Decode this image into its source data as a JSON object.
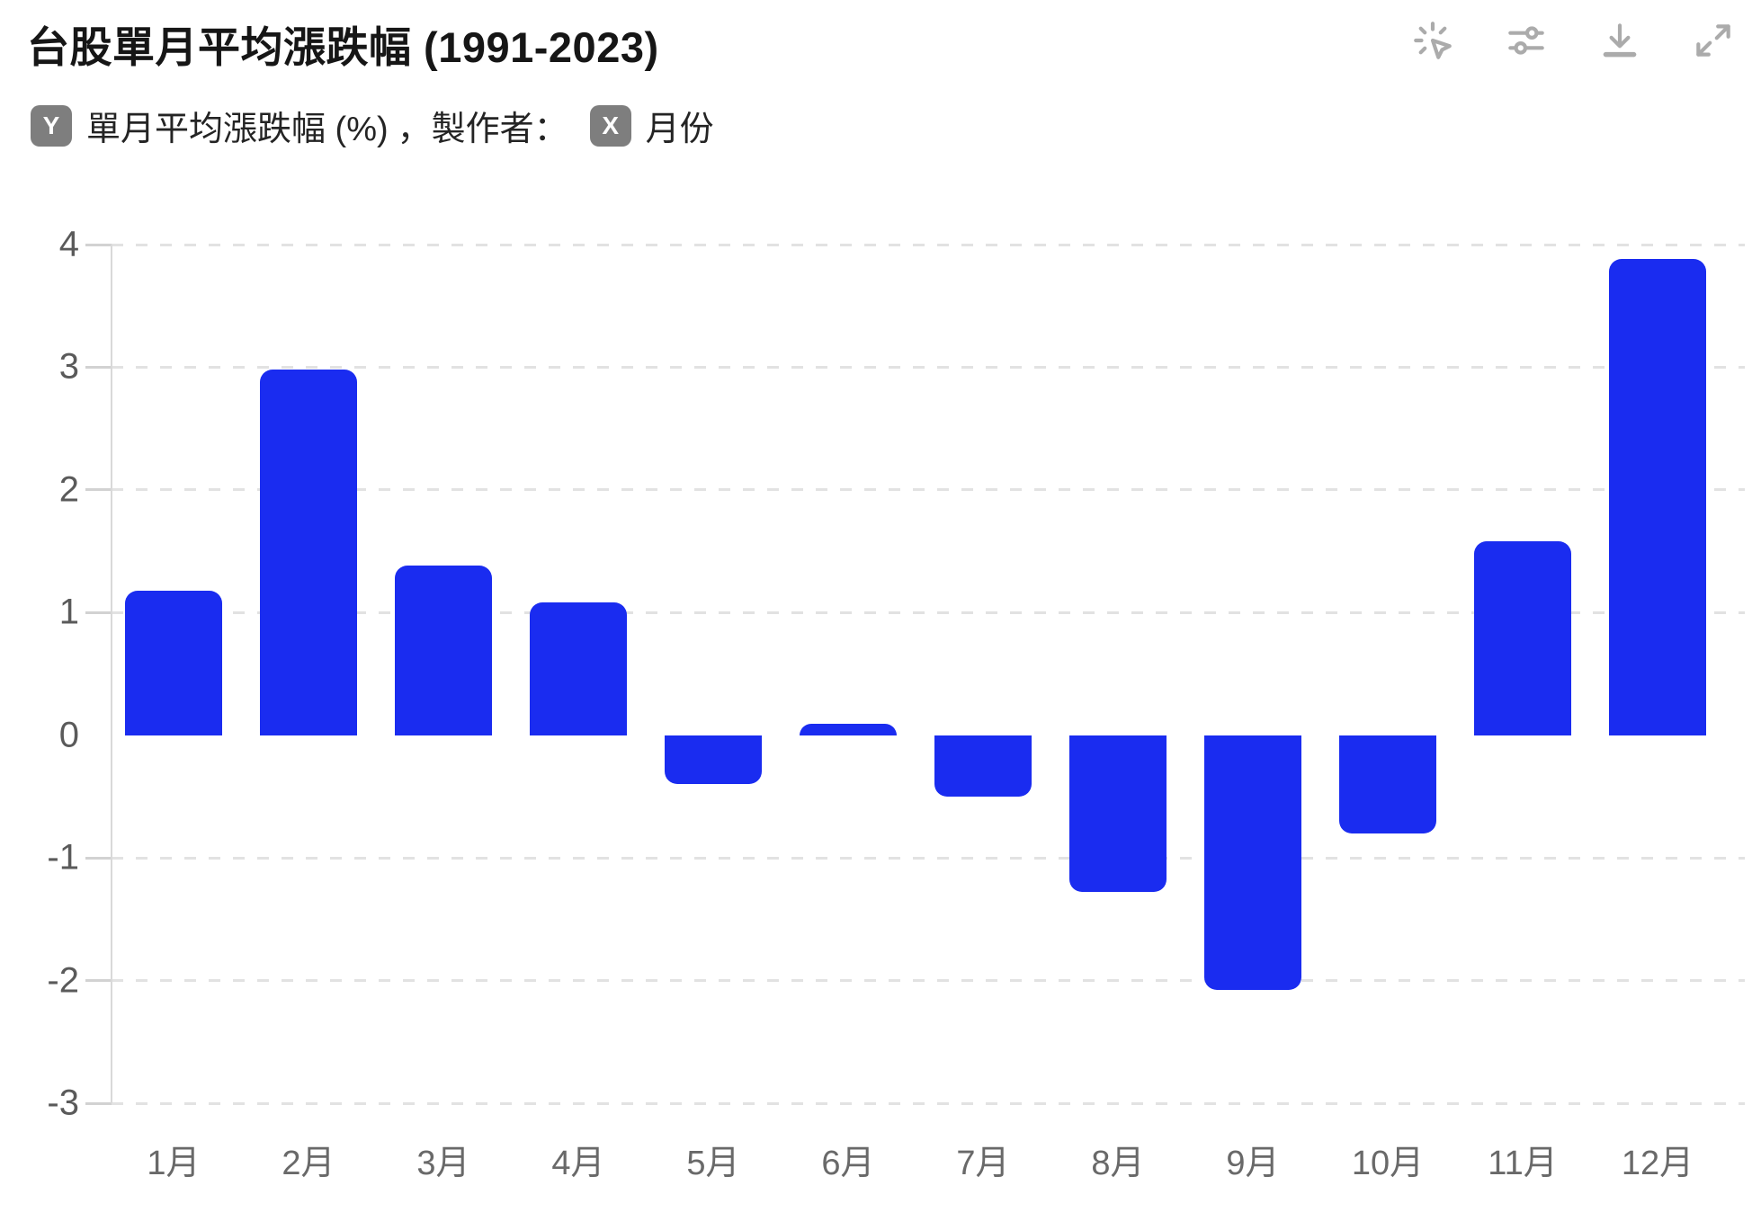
{
  "header": {
    "title": "台股單月平均漲跌幅 (1991-2023)",
    "toolbar": {
      "icons": [
        "click-interact",
        "adjust-sliders",
        "download",
        "expand"
      ]
    }
  },
  "legend": {
    "y_badge": "Y",
    "y_field": "單月平均漲跌幅 (%)",
    "separator": "，製作者：",
    "x_badge": "X",
    "x_field": "月份"
  },
  "chart_data": {
    "type": "bar",
    "title": "台股單月平均漲跌幅 (1991-2023)",
    "categories": [
      "1月",
      "2月",
      "3月",
      "4月",
      "5月",
      "6月",
      "7月",
      "8月",
      "9月",
      "10月",
      "11月",
      "12月"
    ],
    "values": [
      1.18,
      2.98,
      1.38,
      1.08,
      -0.4,
      0.09,
      -0.5,
      -1.28,
      -2.08,
      -0.8,
      1.58,
      3.88
    ],
    "xlabel": "月份",
    "ylabel": "單月平均漲跌幅 (%)",
    "ylim": [
      -3,
      4
    ],
    "yticks": [
      4,
      3,
      2,
      1,
      0,
      -1,
      -2,
      -3
    ],
    "grid": "dashed horizontal gridlines at every tick except 0",
    "legend_position": "none",
    "bar_color": "#1a2cf0",
    "grid_color": "#e2e2e2",
    "tick_color": "#d2d2d2",
    "axis_color": "#d9d9d9",
    "y_label_color": "#5a5a5a",
    "x_label_color": "#696969"
  },
  "colors": {
    "title": "#161616",
    "subtitle_text": "#242424",
    "badge_background": "#7e7e7e",
    "badge_text": "#ffffff",
    "toolbar_icon": "#ababab",
    "background": "#ffffff"
  }
}
